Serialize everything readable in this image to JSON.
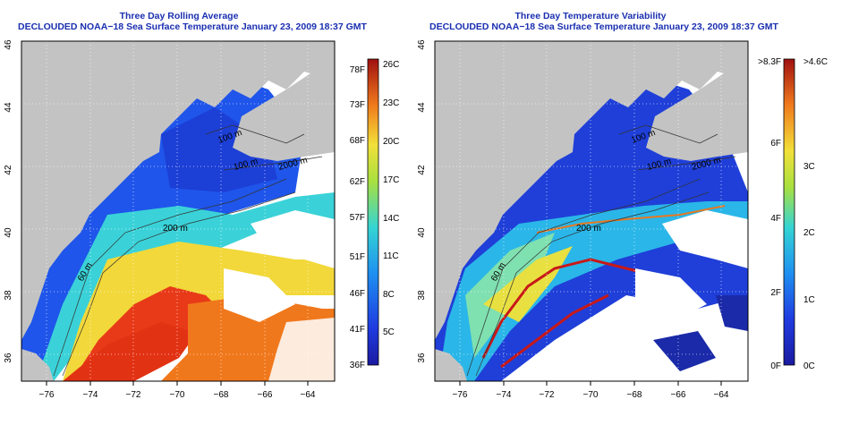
{
  "panels": [
    {
      "title_line1": "Three Day Rolling Average",
      "title_line2": "DECLOUDED NOAA−18 Sea Surface Temperature January 23, 2009 18:37 GMT",
      "lon_ticks": [
        "−76",
        "−74",
        "−72",
        "−70",
        "−68",
        "−66",
        "−64"
      ],
      "lat_ticks": [
        "46",
        "44",
        "42",
        "40",
        "38",
        "36"
      ],
      "contour_labels": [
        "100 m",
        "100 m",
        "2000 m",
        "200 m",
        "60 m"
      ],
      "colorbar": {
        "left_labels": [
          "78F",
          "73F",
          "68F",
          "62F",
          "57F",
          "51F",
          "46F",
          "41F",
          "36F"
        ],
        "right_labels": [
          "26C",
          "23C",
          "20C",
          "17C",
          "14C",
          "11C",
          "8C",
          "5C"
        ],
        "left_values": [
          78,
          73,
          68,
          62,
          57,
          51,
          46,
          41,
          36
        ],
        "right_values": [
          26,
          23,
          20,
          17,
          14,
          11,
          8,
          5
        ],
        "min": 2.2,
        "max": 26
      }
    },
    {
      "title_line1": "Three Day Temperature Variability",
      "title_line2": "DECLOUDED NOAA−18 Sea Surface Temperature January 23, 2009 18:37 GMT",
      "lon_ticks": [
        "−76",
        "−74",
        "−72",
        "−70",
        "−68",
        "−66",
        "−64"
      ],
      "lat_ticks": [
        "46",
        "44",
        "42",
        "40",
        "38",
        "36"
      ],
      "contour_labels": [
        "100 m",
        "100 m",
        "2000 m",
        "200 m",
        "60 m"
      ],
      "colorbar": {
        "left_labels": [
          ">8.3F",
          "6F",
          "4F",
          "2F",
          "0F"
        ],
        "right_labels": [
          ">4.6C",
          "3C",
          "2C",
          "1C",
          "0C"
        ],
        "left_values": [
          8.3,
          6,
          4,
          2,
          0
        ],
        "right_values": [
          4.6,
          3,
          2,
          1,
          0
        ],
        "min": 0,
        "max": 4.6
      }
    }
  ],
  "colors": {
    "land": "#c3c3c3",
    "cloud": "#ffffff",
    "title": "#1a2fb0"
  }
}
